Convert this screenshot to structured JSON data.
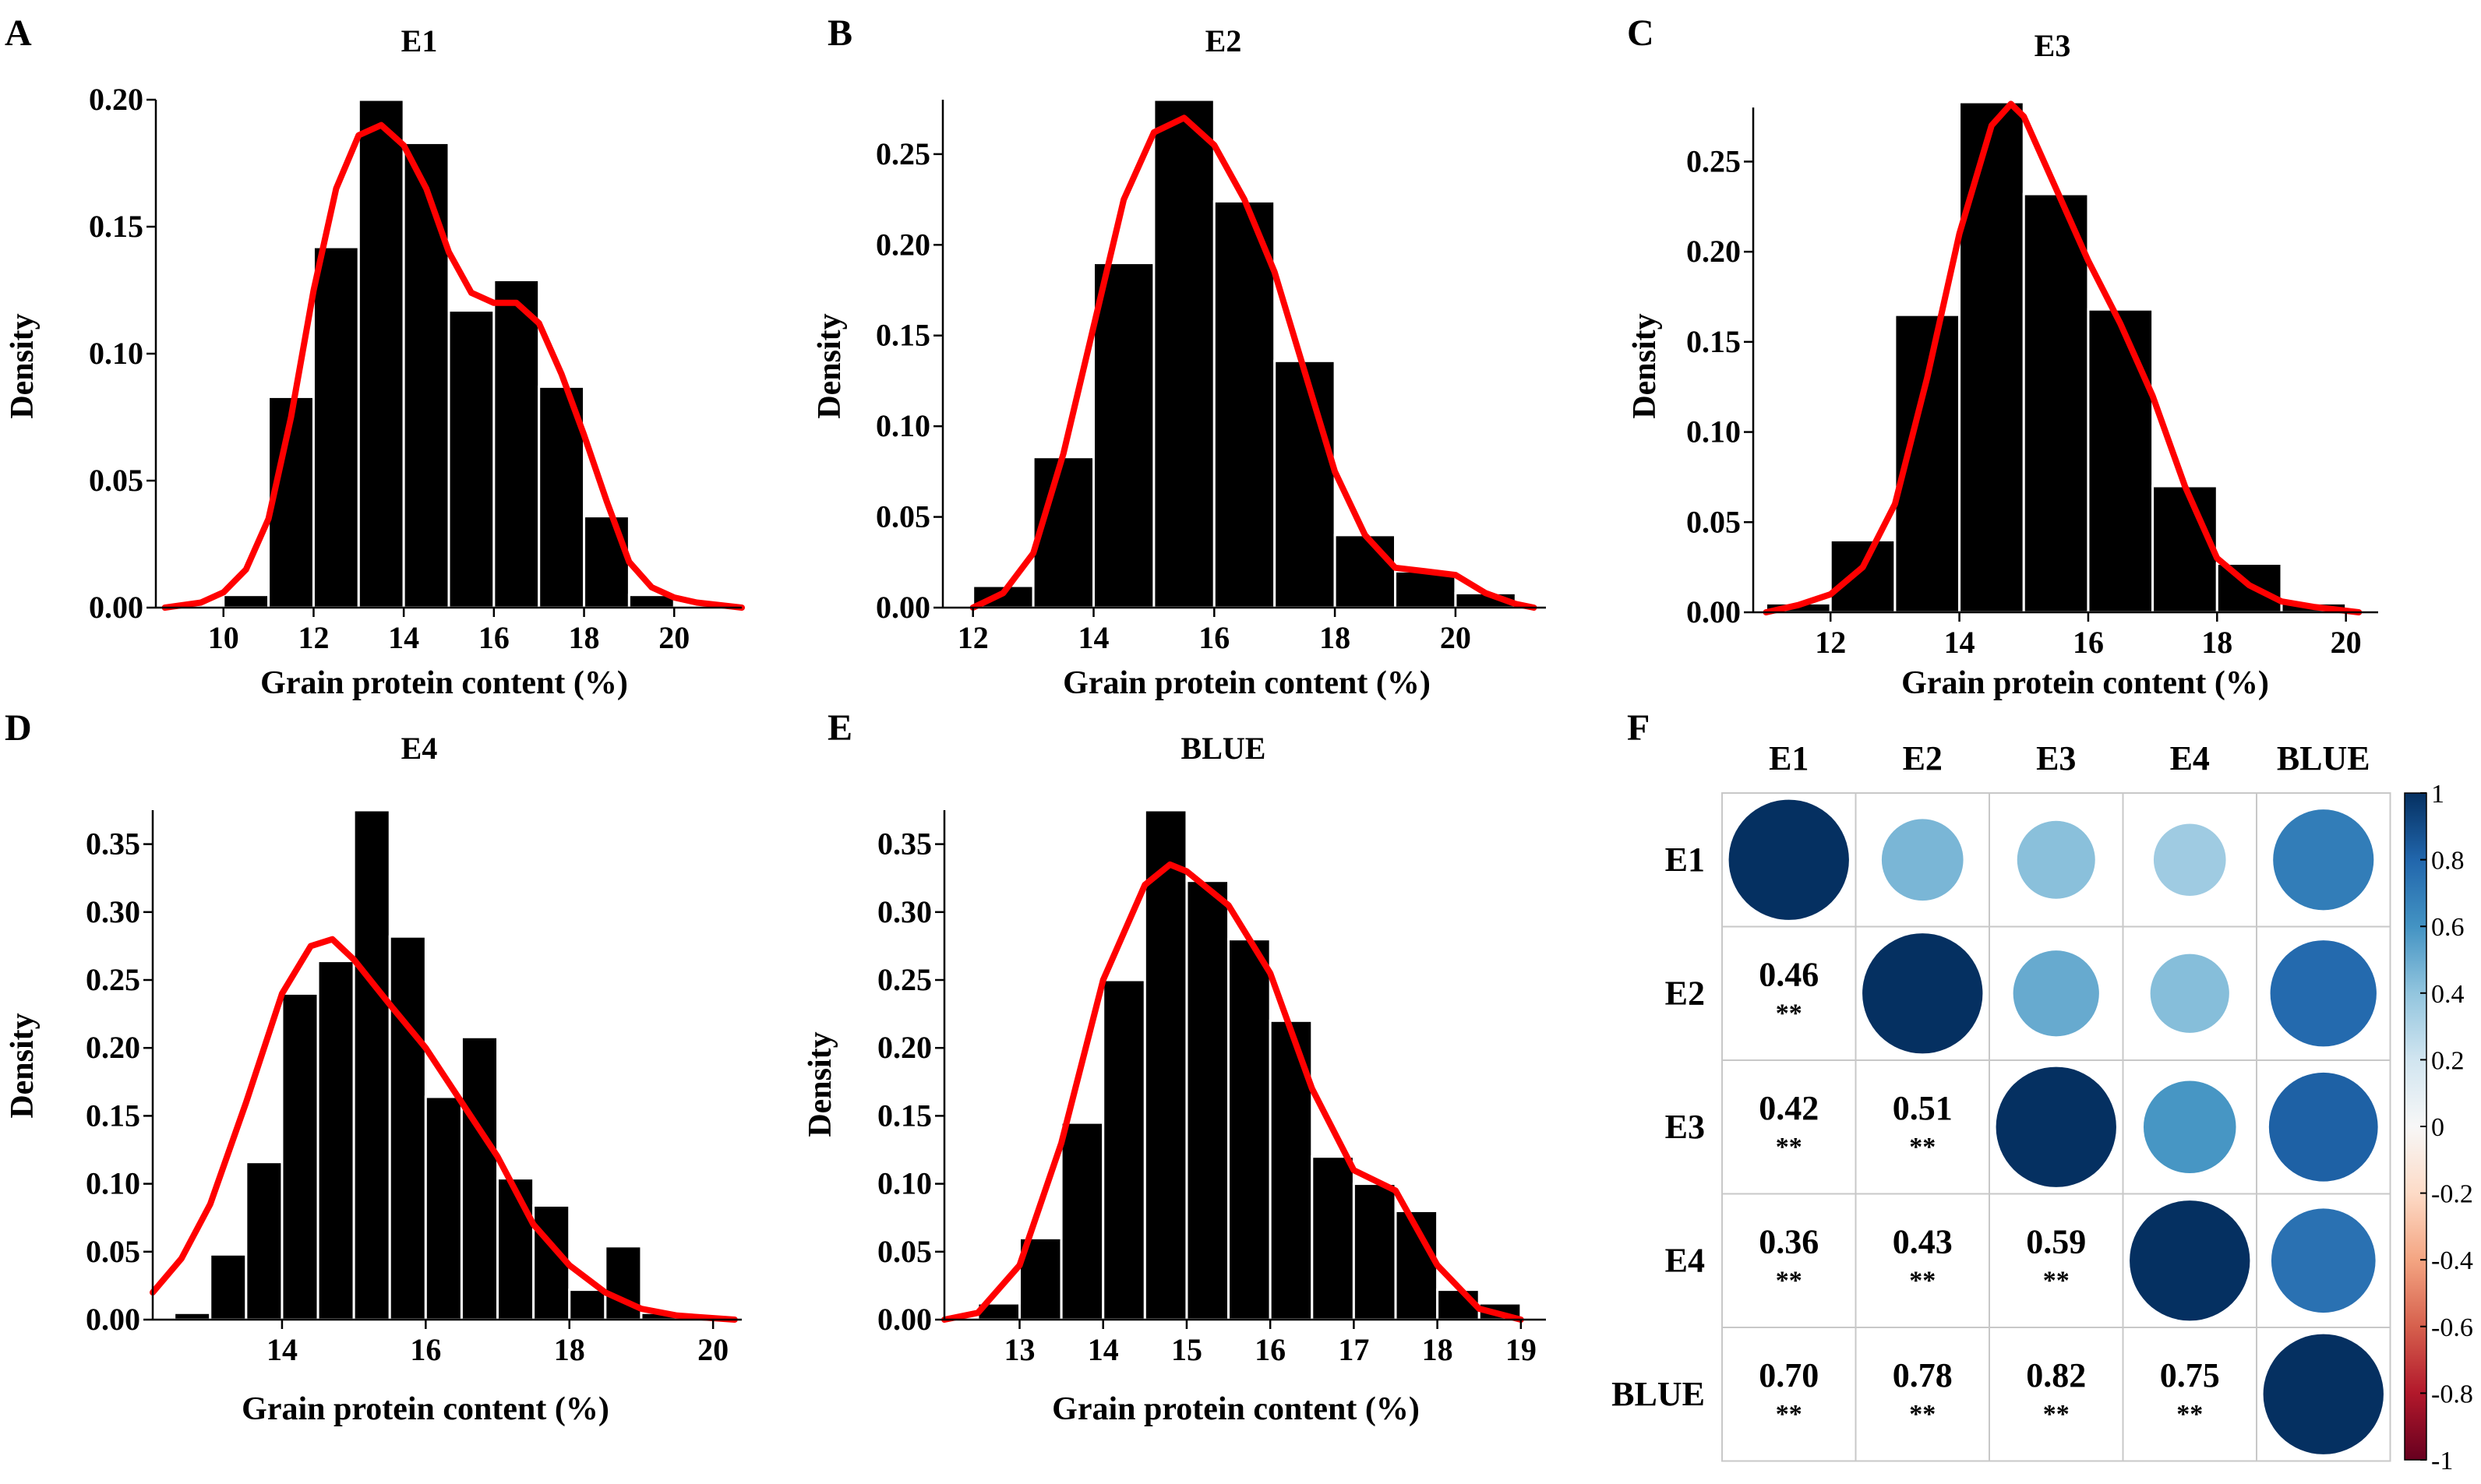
{
  "figure": {
    "curve_color": "#ff0000",
    "bar_color": "#000000",
    "colorbar_colors": [
      "#67001f",
      "#b2182b",
      "#d6604d",
      "#f4a582",
      "#fddbc7",
      "#f7f7f7",
      "#d1e5f0",
      "#92c5de",
      "#4393c3",
      "#2166ac",
      "#053061"
    ]
  },
  "chart_data": [
    {
      "panel": "A",
      "type": "bar",
      "title": "E1",
      "xlabel": "Grain protein content (%)",
      "ylabel": "Density",
      "xlim": [
        8.5,
        21.5
      ],
      "ylim": [
        0,
        0.2
      ],
      "x_ticks": [
        10,
        12,
        14,
        16,
        18,
        20
      ],
      "x_tick_labels": [
        "10",
        "12",
        "14",
        "16",
        "18",
        "20"
      ],
      "y_ticks": [
        0,
        0.05,
        0.1,
        0.15,
        0.2
      ],
      "y_tick_labels": [
        "0.00",
        "0.05",
        "0.10",
        "0.15",
        "0.20"
      ],
      "bin_edges": [
        10,
        11,
        12,
        13,
        14,
        15,
        16,
        17,
        18,
        19,
        20,
        21
      ],
      "values": [
        0.005,
        0.083,
        0.142,
        0.2,
        0.183,
        0.117,
        0.129,
        0.087,
        0.036,
        0.005,
        0.0
      ],
      "density_curve": {
        "x": [
          8.7,
          9.5,
          10,
          10.5,
          11,
          11.5,
          12,
          12.5,
          13,
          13.5,
          14,
          14.5,
          15,
          15.5,
          16,
          16.5,
          17,
          17.5,
          18,
          18.5,
          19,
          19.5,
          20,
          20.5,
          21,
          21.5
        ],
        "y": [
          0.0,
          0.002,
          0.006,
          0.015,
          0.035,
          0.075,
          0.125,
          0.165,
          0.186,
          0.19,
          0.182,
          0.165,
          0.14,
          0.124,
          0.12,
          0.12,
          0.112,
          0.092,
          0.068,
          0.042,
          0.018,
          0.008,
          0.004,
          0.002,
          0.001,
          0.0
        ]
      }
    },
    {
      "panel": "B",
      "type": "bar",
      "title": "E2",
      "xlabel": "Grain protein content (%)",
      "ylabel": "Density",
      "xlim": [
        11.5,
        21.5
      ],
      "ylim": [
        0,
        0.28
      ],
      "x_ticks": [
        12,
        14,
        16,
        18,
        20
      ],
      "x_tick_labels": [
        "12",
        "14",
        "16",
        "18",
        "20"
      ],
      "y_ticks": [
        0,
        0.05,
        0.1,
        0.15,
        0.2,
        0.25
      ],
      "y_tick_labels": [
        "0.00",
        "0.05",
        "0.10",
        "0.15",
        "0.20",
        "0.25"
      ],
      "bin_edges": [
        12,
        13,
        14,
        15,
        16,
        17,
        18,
        19,
        20,
        21
      ],
      "values": [
        0.012,
        0.083,
        0.19,
        0.28,
        0.224,
        0.136,
        0.04,
        0.02,
        0.008
      ],
      "density_curve": {
        "x": [
          12,
          12.5,
          13,
          13.5,
          14,
          14.5,
          15,
          15.5,
          16,
          16.5,
          17,
          17.5,
          18,
          18.5,
          19,
          19.5,
          20,
          20.5,
          21,
          21.3
        ],
        "y": [
          0.0,
          0.008,
          0.03,
          0.085,
          0.155,
          0.225,
          0.262,
          0.27,
          0.255,
          0.225,
          0.185,
          0.13,
          0.075,
          0.04,
          0.022,
          0.02,
          0.018,
          0.008,
          0.002,
          0.0
        ]
      }
    },
    {
      "panel": "C",
      "type": "bar",
      "title": "E3",
      "xlabel": "Grain protein content (%)",
      "ylabel": "Density",
      "xlim": [
        10.8,
        20.5
      ],
      "ylim": [
        0,
        0.28
      ],
      "x_ticks": [
        12,
        14,
        16,
        18,
        20
      ],
      "x_tick_labels": [
        "12",
        "14",
        "16",
        "18",
        "20"
      ],
      "y_ticks": [
        0,
        0.05,
        0.1,
        0.15,
        0.2,
        0.25
      ],
      "y_tick_labels": [
        "0.00",
        "0.05",
        "0.10",
        "0.15",
        "0.20",
        "0.25"
      ],
      "bin_edges": [
        11,
        12,
        13,
        14,
        15,
        16,
        17,
        18,
        19,
        20
      ],
      "values": [
        0.005,
        0.04,
        0.165,
        0.283,
        0.232,
        0.168,
        0.07,
        0.027,
        0.005
      ],
      "density_curve": {
        "x": [
          11,
          11.5,
          12,
          12.5,
          13,
          13.5,
          14,
          14.5,
          14.8,
          15,
          15.5,
          16,
          16.5,
          17,
          17.5,
          18,
          18.5,
          19,
          19.5,
          20.2
        ],
        "y": [
          0.0,
          0.004,
          0.01,
          0.025,
          0.06,
          0.13,
          0.21,
          0.27,
          0.282,
          0.275,
          0.235,
          0.195,
          0.16,
          0.12,
          0.07,
          0.03,
          0.015,
          0.006,
          0.003,
          0.0
        ]
      }
    },
    {
      "panel": "D",
      "type": "bar",
      "title": "E4",
      "xlabel": "Grain protein content (%)",
      "ylabel": "Density",
      "xlim": [
        12.2,
        20.4
      ],
      "ylim": [
        0,
        0.375
      ],
      "x_ticks": [
        14,
        16,
        18,
        20
      ],
      "x_tick_labels": [
        "14",
        "16",
        "18",
        "20"
      ],
      "y_ticks": [
        0,
        0.05,
        0.1,
        0.15,
        0.2,
        0.25,
        0.3,
        0.35
      ],
      "y_tick_labels": [
        "0.00",
        "0.05",
        "0.10",
        "0.15",
        "0.20",
        "0.25",
        "0.30",
        "0.35"
      ],
      "bin_edges": [
        12.5,
        13,
        13.5,
        14,
        14.5,
        15,
        15.5,
        16,
        16.5,
        17,
        17.5,
        18,
        18.5,
        19,
        19.5,
        20
      ],
      "values": [
        0.005,
        0.048,
        0.116,
        0.24,
        0.264,
        0.375,
        0.282,
        0.164,
        0.208,
        0.104,
        0.084,
        0.022,
        0.054,
        0.005,
        0.002
      ],
      "density_curve": {
        "x": [
          12.2,
          12.6,
          13,
          13.5,
          14,
          14.4,
          14.7,
          15,
          15.5,
          16,
          16.5,
          17,
          17.5,
          18,
          18.5,
          19,
          19.5,
          20.3
        ],
        "y": [
          0.02,
          0.045,
          0.085,
          0.16,
          0.24,
          0.275,
          0.28,
          0.265,
          0.232,
          0.2,
          0.16,
          0.12,
          0.07,
          0.04,
          0.02,
          0.008,
          0.003,
          0.0
        ]
      }
    },
    {
      "panel": "E",
      "type": "bar",
      "title": "BLUE",
      "xlabel": "Grain protein content (%)",
      "ylabel": "Density",
      "xlim": [
        12.1,
        19.3
      ],
      "ylim": [
        0,
        0.375
      ],
      "x_ticks": [
        13,
        14,
        15,
        16,
        17,
        18,
        19
      ],
      "x_tick_labels": [
        "13",
        "14",
        "15",
        "16",
        "17",
        "18",
        "19"
      ],
      "y_ticks": [
        0,
        0.05,
        0.1,
        0.15,
        0.2,
        0.25,
        0.3,
        0.35
      ],
      "y_tick_labels": [
        "0.00",
        "0.05",
        "0.10",
        "0.15",
        "0.20",
        "0.25",
        "0.30",
        "0.35"
      ],
      "bin_edges": [
        12.5,
        13,
        13.5,
        14,
        14.5,
        15,
        15.5,
        16,
        16.5,
        17,
        17.5,
        18,
        18.5,
        19
      ],
      "values": [
        0.012,
        0.06,
        0.145,
        0.25,
        0.375,
        0.323,
        0.28,
        0.22,
        0.12,
        0.1,
        0.08,
        0.022,
        0.012
      ],
      "density_curve": {
        "x": [
          12.1,
          12.5,
          13,
          13.5,
          14,
          14.5,
          14.8,
          15,
          15.5,
          16,
          16.5,
          17,
          17.5,
          18,
          18.5,
          19
        ],
        "y": [
          0.0,
          0.005,
          0.04,
          0.13,
          0.25,
          0.32,
          0.335,
          0.33,
          0.305,
          0.255,
          0.17,
          0.11,
          0.095,
          0.04,
          0.008,
          0.0
        ]
      }
    },
    {
      "panel": "F",
      "type": "heatmap",
      "title": "",
      "labels": [
        "E1",
        "E2",
        "E3",
        "E4",
        "BLUE"
      ],
      "matrix": [
        [
          1.0,
          0.46,
          0.42,
          0.36,
          0.7
        ],
        [
          0.46,
          1.0,
          0.51,
          0.43,
          0.78
        ],
        [
          0.42,
          0.51,
          1.0,
          0.59,
          0.82
        ],
        [
          0.36,
          0.43,
          0.59,
          1.0,
          0.75
        ],
        [
          0.7,
          0.78,
          0.82,
          0.75,
          1.0
        ]
      ],
      "lower_labels": [
        {
          "row": 1,
          "col": 0,
          "text": "0.46",
          "sig": "**"
        },
        {
          "row": 2,
          "col": 0,
          "text": "0.42",
          "sig": "**"
        },
        {
          "row": 2,
          "col": 1,
          "text": "0.51",
          "sig": "**"
        },
        {
          "row": 3,
          "col": 0,
          "text": "0.36",
          "sig": "**"
        },
        {
          "row": 3,
          "col": 1,
          "text": "0.43",
          "sig": "**"
        },
        {
          "row": 3,
          "col": 2,
          "text": "0.59",
          "sig": "**"
        },
        {
          "row": 4,
          "col": 0,
          "text": "0.70",
          "sig": "**"
        },
        {
          "row": 4,
          "col": 1,
          "text": "0.78",
          "sig": "**"
        },
        {
          "row": 4,
          "col": 2,
          "text": "0.82",
          "sig": "**"
        },
        {
          "row": 4,
          "col": 3,
          "text": "0.75",
          "sig": "**"
        }
      ],
      "colorbar_ticks": [
        1,
        0.8,
        0.6,
        0.4,
        0.2,
        0,
        -0.2,
        -0.4,
        -0.6,
        -0.8,
        -1
      ],
      "colorbar_tick_labels": [
        "1",
        "0.8",
        "0.6",
        "0.4",
        "0.2",
        "0",
        "-0.2",
        "-0.4",
        "-0.6",
        "-0.8",
        "-1"
      ]
    }
  ]
}
